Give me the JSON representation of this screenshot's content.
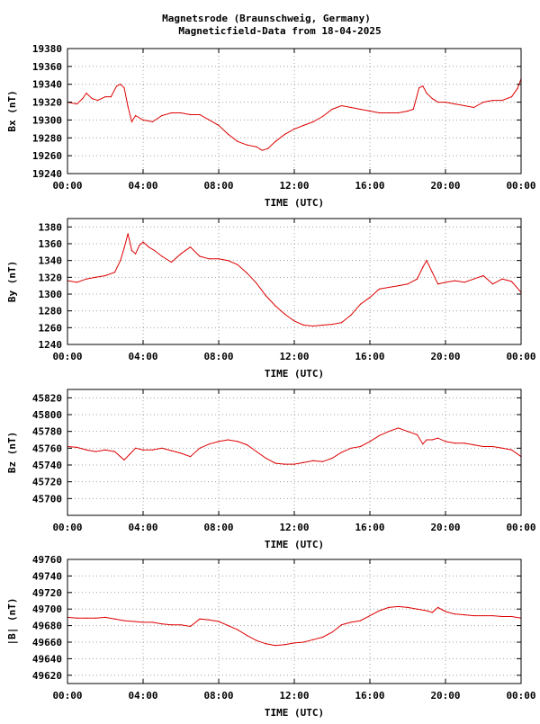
{
  "title": "Magnetsrode (Braunschweig, Germany)",
  "subtitle": "Magneticfield-Data from 18-04-2025",
  "colors": {
    "trace": "#dd0000",
    "grid": "#a0a0a0",
    "frame": "#000000",
    "background": "#ffffff"
  },
  "chart_data": [
    {
      "type": "line",
      "ylabel": "Bx (nT)",
      "xlabel": "TIME (UTC)",
      "xlim": [
        0,
        24
      ],
      "ylim": [
        19240,
        19380
      ],
      "ytick_values": [
        19240,
        19260,
        19280,
        19300,
        19320,
        19340,
        19360,
        19380
      ],
      "ytick_labels": [
        "19240",
        "19260",
        "19280",
        "19300",
        "19320",
        "19340",
        "19360",
        "19380"
      ],
      "xtick_values": [
        0,
        4,
        8,
        12,
        16,
        20,
        24
      ],
      "xtick_labels": [
        "00:00",
        "04:00",
        "08:00",
        "12:00",
        "16:00",
        "20:00",
        "00:00"
      ],
      "grid": true,
      "series": [
        {
          "x": [
            0,
            0.5,
            0.8,
            1.0,
            1.3,
            1.6,
            2.0,
            2.3,
            2.6,
            2.8,
            3.0,
            3.2,
            3.4,
            3.6,
            4.0,
            4.5,
            5.0,
            5.5,
            6.0,
            6.5,
            7.0,
            7.5,
            8.0,
            8.5,
            9.0,
            9.5,
            10.0,
            10.3,
            10.6,
            11.0,
            11.5,
            12.0,
            12.5,
            13.0,
            13.5,
            14.0,
            14.5,
            15.0,
            15.5,
            16.0,
            16.5,
            17.0,
            17.5,
            18.0,
            18.3,
            18.6,
            18.8,
            19.0,
            19.3,
            19.6,
            20.0,
            20.5,
            21.0,
            21.5,
            22.0,
            22.5,
            23.0,
            23.5,
            23.8,
            24.0
          ],
          "y": [
            19320,
            19318,
            19324,
            19330,
            19324,
            19322,
            19326,
            19326,
            19338,
            19340,
            19336,
            19315,
            19298,
            19305,
            19300,
            19298,
            19305,
            19308,
            19308,
            19306,
            19306,
            19300,
            19294,
            19284,
            19276,
            19272,
            19270,
            19266,
            19268,
            19276,
            19284,
            19290,
            19294,
            19298,
            19304,
            19312,
            19316,
            19314,
            19312,
            19310,
            19308,
            19308,
            19308,
            19310,
            19312,
            19336,
            19338,
            19330,
            19324,
            19320,
            19320,
            19318,
            19316,
            19314,
            19320,
            19322,
            19322,
            19326,
            19335,
            19346
          ]
        }
      ]
    },
    {
      "type": "line",
      "ylabel": "By (nT)",
      "xlabel": "TIME (UTC)",
      "xlim": [
        0,
        24
      ],
      "ylim": [
        1240,
        1390
      ],
      "ytick_values": [
        1240,
        1260,
        1280,
        1300,
        1320,
        1340,
        1360,
        1380
      ],
      "ytick_labels": [
        "1240",
        "1260",
        "1280",
        "1300",
        "1320",
        "1340",
        "1360",
        "1380"
      ],
      "xtick_values": [
        0,
        4,
        8,
        12,
        16,
        20,
        24
      ],
      "xtick_labels": [
        "00:00",
        "04:00",
        "08:00",
        "12:00",
        "16:00",
        "20:00",
        "00:00"
      ],
      "grid": true,
      "series": [
        {
          "x": [
            0,
            0.5,
            1.0,
            1.5,
            2.0,
            2.5,
            2.8,
            3.0,
            3.2,
            3.4,
            3.6,
            3.8,
            4.0,
            4.3,
            4.6,
            5.0,
            5.5,
            6.0,
            6.5,
            7.0,
            7.5,
            8.0,
            8.5,
            9.0,
            9.5,
            10.0,
            10.5,
            11.0,
            11.5,
            12.0,
            12.5,
            13.0,
            13.5,
            14.0,
            14.5,
            15.0,
            15.5,
            16.0,
            16.5,
            17.0,
            17.5,
            18.0,
            18.5,
            18.8,
            19.0,
            19.3,
            19.6,
            20.0,
            20.5,
            21.0,
            21.5,
            22.0,
            22.5,
            23.0,
            23.5,
            24.0
          ],
          "y": [
            1316,
            1314,
            1318,
            1320,
            1322,
            1326,
            1340,
            1355,
            1372,
            1352,
            1348,
            1358,
            1362,
            1356,
            1352,
            1345,
            1338,
            1348,
            1356,
            1345,
            1342,
            1342,
            1340,
            1335,
            1325,
            1313,
            1298,
            1286,
            1276,
            1268,
            1263,
            1262,
            1263,
            1264,
            1266,
            1275,
            1288,
            1296,
            1306,
            1308,
            1310,
            1312,
            1318,
            1332,
            1340,
            1326,
            1312,
            1314,
            1316,
            1314,
            1318,
            1322,
            1312,
            1318,
            1315,
            1302
          ]
        }
      ]
    },
    {
      "type": "line",
      "ylabel": "Bz (nT)",
      "xlabel": "TIME (UTC)",
      "xlim": [
        0,
        24
      ],
      "ylim": [
        45680,
        45830
      ],
      "ytick_values": [
        45700,
        45720,
        45740,
        45760,
        45780,
        45800,
        45820
      ],
      "ytick_labels": [
        "45700",
        "45720",
        "45740",
        "45760",
        "45780",
        "45800",
        "45820"
      ],
      "xtick_values": [
        0,
        4,
        8,
        12,
        16,
        20,
        24
      ],
      "xtick_labels": [
        "00:00",
        "04:00",
        "08:00",
        "12:00",
        "16:00",
        "20:00",
        "00:00"
      ],
      "grid": true,
      "series": [
        {
          "x": [
            0,
            0.5,
            1.0,
            1.5,
            2.0,
            2.5,
            2.8,
            3.0,
            3.3,
            3.6,
            4.0,
            4.5,
            5.0,
            5.5,
            6.0,
            6.5,
            7.0,
            7.5,
            8.0,
            8.5,
            9.0,
            9.5,
            10.0,
            10.5,
            11.0,
            11.5,
            12.0,
            12.5,
            13.0,
            13.5,
            14.0,
            14.5,
            15.0,
            15.5,
            16.0,
            16.5,
            17.0,
            17.5,
            18.0,
            18.5,
            18.8,
            19.0,
            19.3,
            19.6,
            20.0,
            20.5,
            21.0,
            21.5,
            22.0,
            22.5,
            23.0,
            23.5,
            24.0
          ],
          "y": [
            45762,
            45761,
            45758,
            45756,
            45758,
            45756,
            45750,
            45746,
            45753,
            45760,
            45758,
            45758,
            45760,
            45757,
            45754,
            45750,
            45760,
            45765,
            45768,
            45770,
            45768,
            45764,
            45756,
            45748,
            45742,
            45741,
            45741,
            45743,
            45745,
            45744,
            45748,
            45755,
            45760,
            45762,
            45768,
            45775,
            45780,
            45784,
            45780,
            45776,
            45765,
            45770,
            45770,
            45772,
            45768,
            45766,
            45766,
            45764,
            45762,
            45762,
            45760,
            45758,
            45750
          ]
        }
      ]
    },
    {
      "type": "line",
      "ylabel": "|B| (nT)",
      "xlabel": "TIME (UTC)",
      "xlim": [
        0,
        24
      ],
      "ylim": [
        49610,
        49760
      ],
      "ytick_values": [
        49620,
        49640,
        49660,
        49680,
        49700,
        49720,
        49740,
        49760
      ],
      "ytick_labels": [
        "49620",
        "49640",
        "49660",
        "49680",
        "49700",
        "49720",
        "49740",
        "49760"
      ],
      "xtick_values": [
        0,
        4,
        8,
        12,
        16,
        20,
        24
      ],
      "xtick_labels": [
        "00:00",
        "04:00",
        "08:00",
        "12:00",
        "16:00",
        "20:00",
        "00:00"
      ],
      "grid": true,
      "series": [
        {
          "x": [
            0,
            0.5,
            1.0,
            1.5,
            2.0,
            2.5,
            3.0,
            3.5,
            4.0,
            4.5,
            5.0,
            5.5,
            6.0,
            6.5,
            7.0,
            7.5,
            8.0,
            8.5,
            9.0,
            9.5,
            10.0,
            10.5,
            11.0,
            11.5,
            12.0,
            12.5,
            13.0,
            13.5,
            14.0,
            14.5,
            15.0,
            15.5,
            16.0,
            16.5,
            17.0,
            17.5,
            18.0,
            18.5,
            19.0,
            19.3,
            19.6,
            20.0,
            20.5,
            21.0,
            21.5,
            22.0,
            22.5,
            23.0,
            23.5,
            24.0
          ],
          "y": [
            49690,
            49689,
            49689,
            49689,
            49690,
            49688,
            49686,
            49685,
            49684,
            49684,
            49682,
            49681,
            49681,
            49679,
            49688,
            49687,
            49685,
            49680,
            49675,
            49668,
            49662,
            49658,
            49656,
            49657,
            49659,
            49660,
            49663,
            49666,
            49672,
            49681,
            49684,
            49686,
            49692,
            49698,
            49702,
            49703,
            49702,
            49700,
            49698,
            49696,
            49702,
            49697,
            49694,
            49693,
            49692,
            49692,
            49692,
            49691,
            49691,
            49689
          ]
        }
      ]
    }
  ]
}
